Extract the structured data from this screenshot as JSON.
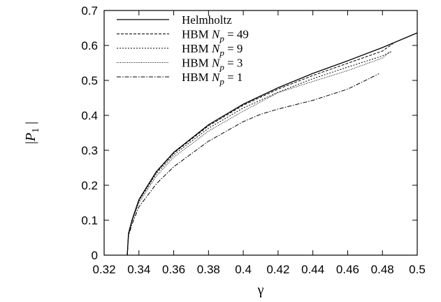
{
  "chart_data": {
    "type": "line",
    "xlabel": "γ",
    "ylabel": "|P1|",
    "xlim": [
      0.32,
      0.5
    ],
    "ylim": [
      0,
      0.7
    ],
    "xticks": [
      "0.32",
      "0.34",
      "0.36",
      "0.38",
      "0.4",
      "0.42",
      "0.44",
      "0.46",
      "0.48",
      "0.5"
    ],
    "yticks": [
      "0",
      "0.1",
      "0.2",
      "0.3",
      "0.4",
      "0.5",
      "0.6",
      "0.7"
    ],
    "legend_position": "top-left",
    "grid": false,
    "series": [
      {
        "name": "Helmholtz",
        "dash": "solid",
        "x": [
          0.3333,
          0.334,
          0.336,
          0.34,
          0.35,
          0.36,
          0.38,
          0.4,
          0.42,
          0.44,
          0.46,
          0.48,
          0.5
        ],
        "y": [
          0.0,
          0.062,
          0.1,
          0.159,
          0.239,
          0.294,
          0.373,
          0.432,
          0.479,
          0.52,
          0.556,
          0.594,
          0.636
        ]
      },
      {
        "name": "HBM Np = 49",
        "dash": "dashed",
        "x": [
          0.3333,
          0.334,
          0.336,
          0.34,
          0.35,
          0.36,
          0.38,
          0.4,
          0.42,
          0.44,
          0.46,
          0.48,
          0.486
        ],
        "y": [
          0.0,
          0.06,
          0.1,
          0.158,
          0.237,
          0.292,
          0.37,
          0.429,
          0.475,
          0.514,
          0.549,
          0.584,
          0.605
        ]
      },
      {
        "name": "HBM Np = 9",
        "dash": "dotted",
        "x": [
          0.3333,
          0.334,
          0.336,
          0.34,
          0.35,
          0.36,
          0.38,
          0.4,
          0.42,
          0.44,
          0.46,
          0.48,
          0.485
        ],
        "y": [
          0.0,
          0.06,
          0.098,
          0.155,
          0.233,
          0.287,
          0.363,
          0.421,
          0.466,
          0.505,
          0.538,
          0.57,
          0.582
        ]
      },
      {
        "name": "HBM Np = 3",
        "dash": "fine-dotted",
        "x": [
          0.3333,
          0.334,
          0.336,
          0.34,
          0.35,
          0.36,
          0.38,
          0.4,
          0.42,
          0.44,
          0.46,
          0.48,
          0.484
        ],
        "y": [
          0.0,
          0.058,
          0.095,
          0.15,
          0.226,
          0.28,
          0.355,
          0.412,
          0.465,
          0.497,
          0.528,
          0.564,
          0.581
        ]
      },
      {
        "name": "HBM Np = 1",
        "dash": "dash-dot",
        "x": [
          0.3333,
          0.334,
          0.336,
          0.34,
          0.35,
          0.36,
          0.38,
          0.4,
          0.41,
          0.42,
          0.44,
          0.46,
          0.478
        ],
        "y": [
          0.0,
          0.055,
          0.088,
          0.138,
          0.204,
          0.253,
          0.326,
          0.382,
          0.403,
          0.418,
          0.443,
          0.475,
          0.519
        ]
      }
    ]
  }
}
